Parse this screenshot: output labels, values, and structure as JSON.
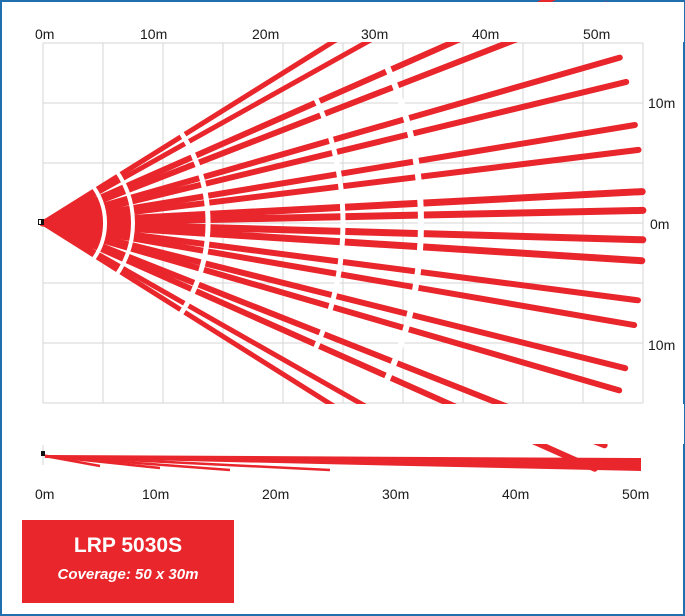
{
  "top_view": {
    "x_labels": [
      "0m",
      "10m",
      "20m",
      "30m",
      "40m",
      "50m"
    ],
    "y_labels": [
      "10m",
      "0m",
      "10m"
    ]
  },
  "side_view": {
    "x_labels": [
      "0m",
      "10m",
      "20m",
      "30m",
      "40m",
      "50m"
    ]
  },
  "product": {
    "model": "LRP 5030S",
    "coverage": "Coverage: 50 x 30m"
  },
  "colors": {
    "beam": "#e8262c",
    "grid": "#d6d6d6",
    "frame": "#1f6fae"
  }
}
